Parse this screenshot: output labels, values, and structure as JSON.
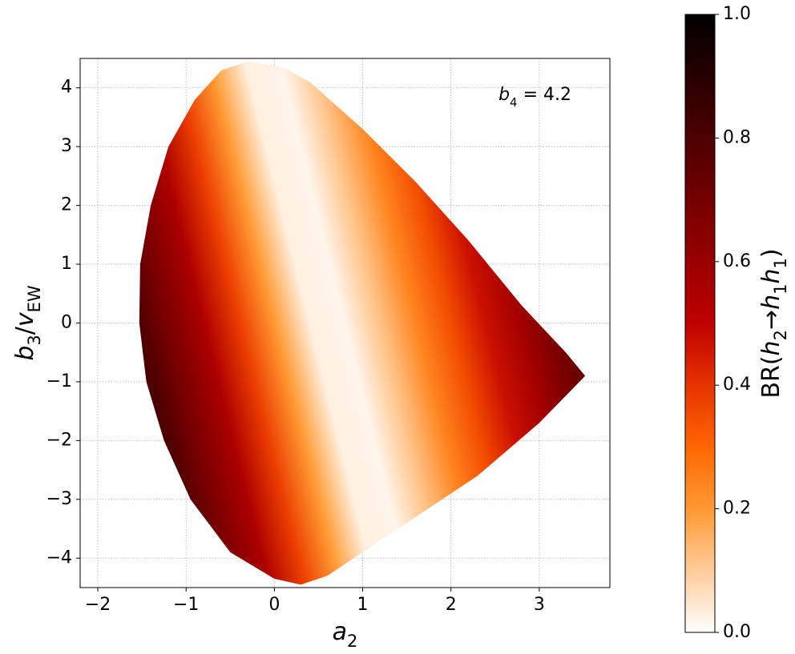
{
  "chart_data": {
    "type": "region",
    "xlabel": [
      {
        "text": "a",
        "italic": true
      },
      {
        "text": "2",
        "sub": true
      }
    ],
    "ylabel": [
      {
        "text": "b",
        "italic": true
      },
      {
        "text": "3",
        "sub": true
      },
      {
        "text": "/"
      },
      {
        "text": "v",
        "italic": true
      },
      {
        "text": "EW",
        "sub": true
      }
    ],
    "annotation": [
      {
        "text": "b",
        "italic": true
      },
      {
        "text": "4",
        "sub": true
      },
      {
        "text": " = 4.2"
      }
    ],
    "xlim": [
      -2.2,
      3.8
    ],
    "ylim": [
      -4.5,
      4.5
    ],
    "xticks": [
      {
        "value": -2,
        "label": "−2"
      },
      {
        "value": -1,
        "label": "−1"
      },
      0,
      1,
      2,
      3
    ],
    "yticks": [
      {
        "value": -4,
        "label": "−4"
      },
      {
        "value": -3,
        "label": "−3"
      },
      {
        "value": -2,
        "label": "−2"
      },
      {
        "value": -1,
        "label": "−1"
      },
      0,
      1,
      2,
      3,
      4
    ],
    "grid": true,
    "region": {
      "x": [
        -0.3,
        -0.6,
        -0.9,
        -1.2,
        -1.4,
        -1.52,
        -1.53,
        -1.45,
        -1.25,
        -0.95,
        -0.5,
        0,
        0.3,
        0.6,
        1.0,
        1.6,
        2.3,
        3.0,
        3.52,
        3.3,
        2.8,
        2.2,
        1.6,
        1.0,
        0.4,
        0.1
      ],
      "y": [
        4.45,
        4.3,
        3.8,
        3.0,
        2.0,
        1.0,
        0,
        -1.0,
        -2.0,
        -3.0,
        -3.9,
        -4.35,
        -4.45,
        -4.3,
        -3.9,
        -3.3,
        -2.6,
        -1.7,
        -0.9,
        -0.5,
        0.3,
        1.4,
        2.4,
        3.3,
        4.1,
        4.35
      ]
    },
    "br_profile": {
      "x": [
        -1.55,
        -1.2,
        -0.8,
        -0.4,
        0,
        0.4,
        0.8,
        1.2,
        1.6,
        2.0,
        2.4,
        2.8,
        3.2,
        3.55
      ],
      "values": [
        0.8,
        0.68,
        0.55,
        0.38,
        0.2,
        0.03,
        0.02,
        0.12,
        0.24,
        0.35,
        0.47,
        0.58,
        0.7,
        0.8
      ]
    },
    "colormap": [
      "#ffffff",
      "#ffcc99",
      "#ff9933",
      "#ff6600",
      "#e63300",
      "#bf0000",
      "#990000",
      "#730000",
      "#4d0000",
      "#260000",
      "#000000"
    ],
    "clim": [
      0,
      1
    ],
    "cticks": [
      {
        "value": 0,
        "label": "0.0"
      },
      {
        "value": 0.2,
        "label": "0.2"
      },
      {
        "value": 0.4,
        "label": "0.4"
      },
      {
        "value": 0.6,
        "label": "0.6"
      },
      {
        "value": 0.8,
        "label": "0.8"
      },
      {
        "value": 1,
        "label": "1.0"
      }
    ],
    "clabel": [
      {
        "text": "BR("
      },
      {
        "text": "h",
        "italic": true
      },
      {
        "text": "2",
        "sub": true
      },
      {
        "text": "→"
      },
      {
        "text": "h",
        "italic": true
      },
      {
        "text": "1",
        "sub": true
      },
      {
        "text": "h",
        "italic": true
      },
      {
        "text": "1",
        "sub": true
      },
      {
        "text": ")"
      }
    ]
  }
}
